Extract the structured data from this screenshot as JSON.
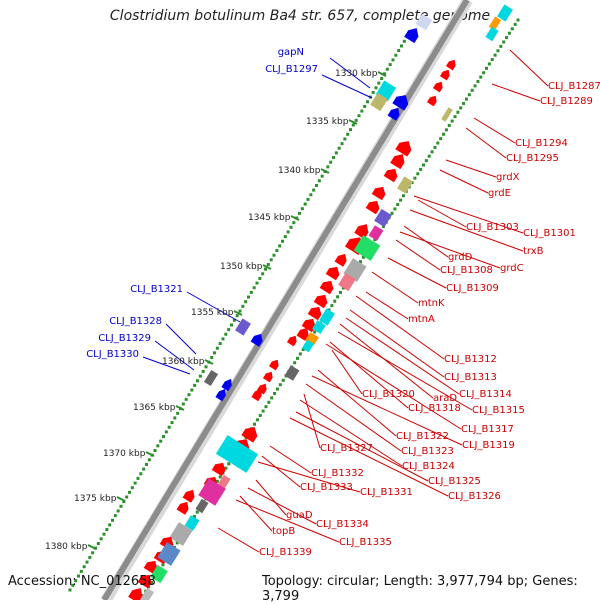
{
  "header": {
    "title": "Clostridium botulinum Ba4 str. 657, complete genome"
  },
  "footer": {
    "accession": "Accession: NC_012658",
    "summary": "Topology: circular; Length: 3,977,794 bp; Genes: 3,799"
  },
  "colors": {
    "backbone": "#8c8c8c",
    "tick_dot": "#2c8f2c",
    "label_blue": "#0000cc",
    "label_red": "#cc0000",
    "gene_red": "#ff0000",
    "gene_blue": "#0000ee",
    "gene_cyan": "#00d8e0",
    "gene_khaki": "#bdb76b",
    "gene_magenta": "#e0309f",
    "gene_slate": "#6a5acd",
    "gene_green": "#22dd66",
    "gene_grey": "#aaaaaa",
    "gene_pink": "#ee7788",
    "gene_orange": "#ff9900",
    "gene_steel": "#5a88c8"
  },
  "scale": {
    "ticks": [
      "1330 kbp",
      "1335 kbp",
      "1340 kbp",
      "1345 kbp",
      "1350 kbp",
      "1355 kbp",
      "1360 kbp",
      "1365 kbp",
      "1370 kbp",
      "1375 kbp",
      "1380 kbp"
    ]
  },
  "labels_left": [
    "gapN",
    "CLJ_B1297",
    "CLJ_B1321",
    "CLJ_B1328",
    "CLJ_B1329",
    "CLJ_B1330"
  ],
  "labels_right": [
    "CLJ_B1287",
    "CLJ_B1289",
    "CLJ_B1294",
    "CLJ_B1295",
    "grdX",
    "grdE",
    "CLJ_B1301",
    "CLJ_B1303",
    "trxB",
    "grdD",
    "grdC",
    "CLJ_B1308",
    "CLJ_B1309",
    "mtnK",
    "mtnA",
    "CLJ_B1312",
    "CLJ_B1313",
    "CLJ_B1314",
    "araD",
    "CLJ_B1315",
    "CLJ_B1320",
    "CLJ_B1318",
    "CLJ_B1317",
    "CLJ_B1322",
    "CLJ_B1319",
    "CLJ_B1323",
    "CLJ_B1327",
    "CLJ_B1324",
    "CLJ_B1332",
    "CLJ_B1325",
    "CLJ_B1333",
    "CLJ_B1331",
    "CLJ_B1326",
    "guaD",
    "CLJ_B1334",
    "topB",
    "CLJ_B1335",
    "CLJ_B1339"
  ]
}
